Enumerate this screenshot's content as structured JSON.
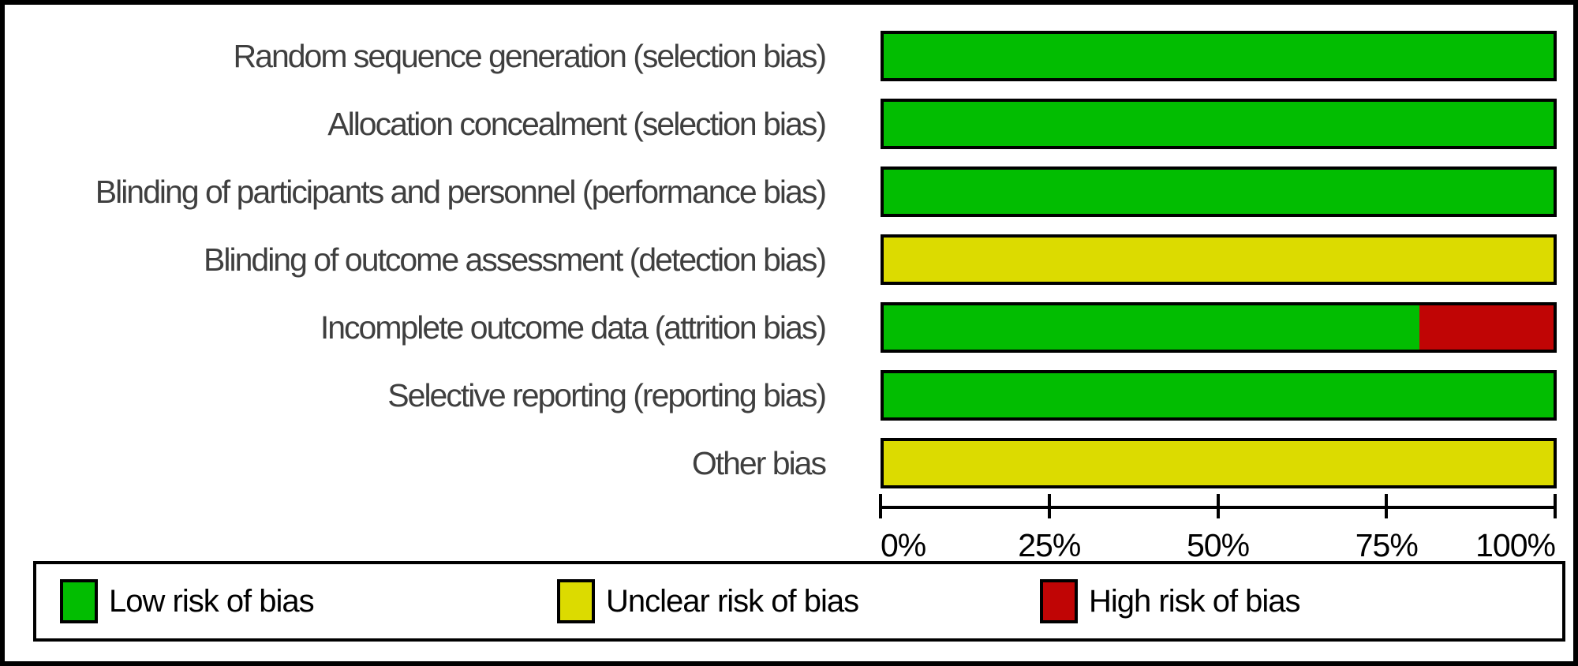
{
  "figure": {
    "kind": "risk-of-bias-graph"
  },
  "colors": {
    "low_risk": "#02BD01",
    "unclear_risk": "#DCDB00",
    "high_risk": "#C00505",
    "border": "#000000",
    "row_label_text": "#3F3F3F",
    "axis_text": "#000000",
    "background": "#FFFFFF"
  },
  "chart_data": {
    "type": "bar",
    "orientation": "horizontal",
    "stacked": true,
    "title": "",
    "xlabel": "",
    "ylabel": "",
    "grid": false,
    "categories": [
      "Random sequence generation (selection bias)",
      "Allocation concealment (selection bias)",
      "Blinding of participants and personnel (performance bias)",
      "Blinding of outcome assessment (detection bias)",
      "Incomplete outcome data (attrition bias)",
      "Selective reporting (reporting bias)",
      "Other bias"
    ],
    "series": [
      {
        "id": "low",
        "name": "Low risk of bias",
        "color": "#02BD01",
        "values": [
          100,
          100,
          100,
          0,
          80,
          100,
          0
        ]
      },
      {
        "id": "unclear",
        "name": "Unclear risk of bias",
        "color": "#DCDB00",
        "values": [
          0,
          0,
          0,
          100,
          0,
          0,
          100
        ]
      },
      {
        "id": "high",
        "name": "High risk of bias",
        "color": "#C00505",
        "values": [
          0,
          0,
          0,
          0,
          20,
          0,
          0
        ]
      }
    ],
    "x_axis": {
      "range": [
        0,
        100
      ],
      "tick_positions": [
        0,
        25,
        50,
        75,
        100
      ],
      "tick_labels": [
        "0%",
        "25%",
        "50%",
        "75%",
        "100%"
      ]
    },
    "legend": {
      "position": "bottom"
    }
  }
}
